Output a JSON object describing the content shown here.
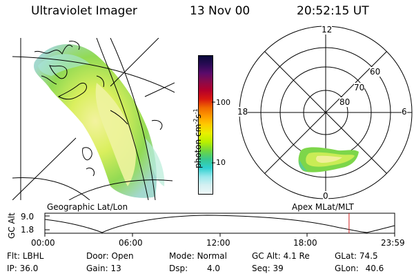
{
  "header": {
    "instrument": "Ultraviolet Imager",
    "date": "13 Nov 00",
    "time": "20:52:15 UT"
  },
  "colorbar": {
    "unit_label": "photon cm",
    "unit_exp1": "-2",
    "unit_mid": "s",
    "unit_exp2": "-1",
    "tick_100": "100",
    "tick_10": "10",
    "colors": [
      "#0a0a3a",
      "#2a0a55",
      "#5a0a6a",
      "#8a0a4a",
      "#b5002a",
      "#d81810",
      "#f06a00",
      "#ff9a00",
      "#ffcc00",
      "#e8f000",
      "#b8f000",
      "#6fd640",
      "#38c890",
      "#30d0d0",
      "#9ae8ec",
      "#d4f0f2",
      "#eef8f8"
    ]
  },
  "geo_panel": {
    "label": "Geographic Lat/Lon"
  },
  "polar_panel": {
    "label": "Apex MLat/MLT",
    "mlt_12": "12",
    "mlt_18": "18",
    "mlt_6": "6",
    "mlt_0": "0",
    "lat_60": "60",
    "lat_70": "70",
    "lat_80": "80"
  },
  "altitude_strip": {
    "axis_label": "GC Alt",
    "y_top": "9.0",
    "y_bottom": "1.8",
    "x_ticks": [
      "00:00",
      "06:00",
      "12:00",
      "18:00",
      "23:59"
    ],
    "marker_time_hours": 20.87
  },
  "info_rows": [
    [
      {
        "key": "Flt:",
        "value": "LBHL"
      },
      {
        "key": "Door:",
        "value": "Open"
      },
      {
        "key": "Mode:",
        "value": "Normal"
      },
      {
        "key": "GC Alt:",
        "value": "4.1 Re"
      },
      {
        "key": "GLat:",
        "value": "74.5"
      }
    ],
    [
      {
        "key": "IP:",
        "value": "36.0"
      },
      {
        "key": "Gain:",
        "value": "13"
      },
      {
        "key": "Dsp:",
        "value": "4.0"
      },
      {
        "key": "Seq:",
        "value": "39"
      },
      {
        "key": "GLon:",
        "value": "40.6"
      }
    ]
  ]
}
